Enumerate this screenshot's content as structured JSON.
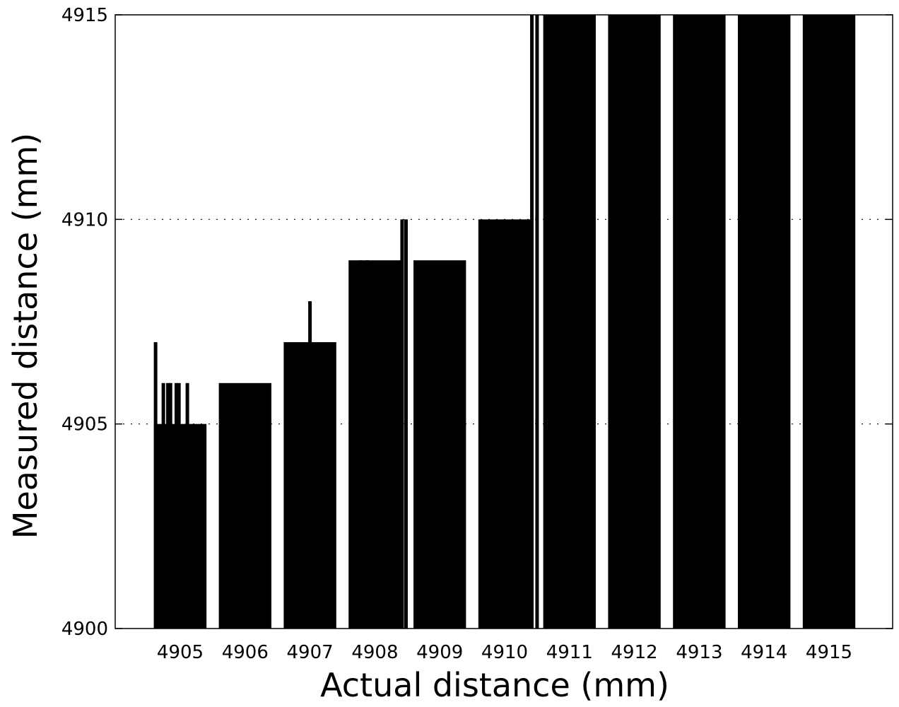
{
  "chart_data": {
    "type": "bar",
    "title": "",
    "xlabel": "Actual distance (mm)",
    "ylabel": "Measured distance (mm)",
    "categories": [
      "4905",
      "4906",
      "4907",
      "4908",
      "4909",
      "4910",
      "4911",
      "4912",
      "4913",
      "4914",
      "4915"
    ],
    "values": [
      4905,
      4906,
      4907,
      4909,
      4909,
      4910,
      4915,
      4915,
      4915,
      4915,
      4915
    ],
    "ylim": [
      4900,
      4915
    ],
    "yticks": [
      "4900",
      "4905",
      "4910",
      "4915"
    ],
    "grid": "dotted horizontal",
    "legend": "none",
    "bar_color": "#000000",
    "outliers": [
      {
        "category": "4905",
        "offset": -0.38,
        "value": 4907
      },
      {
        "category": "4905",
        "offset": -0.26,
        "value": 4906
      },
      {
        "category": "4905",
        "offset": -0.19,
        "value": 4906
      },
      {
        "category": "4905",
        "offset": -0.15,
        "value": 4906
      },
      {
        "category": "4905",
        "offset": -0.06,
        "value": 4906
      },
      {
        "category": "4905",
        "offset": -0.02,
        "value": 4906
      },
      {
        "category": "4905",
        "offset": 0.11,
        "value": 4906
      },
      {
        "category": "4907",
        "offset": 0.0,
        "value": 4908
      },
      {
        "category": "4908",
        "offset": -0.3,
        "value": 4908
      },
      {
        "category": "4908",
        "offset": -0.22,
        "value": 4909
      },
      {
        "category": "4908",
        "offset": -0.12,
        "value": 4909
      },
      {
        "category": "4908",
        "offset": 0.42,
        "value": 4910
      },
      {
        "category": "4908",
        "offset": 0.48,
        "value": 4910
      },
      {
        "category": "4910",
        "offset": 0.42,
        "value": 4915
      },
      {
        "category": "4910",
        "offset": 0.5,
        "value": 4915
      }
    ]
  }
}
